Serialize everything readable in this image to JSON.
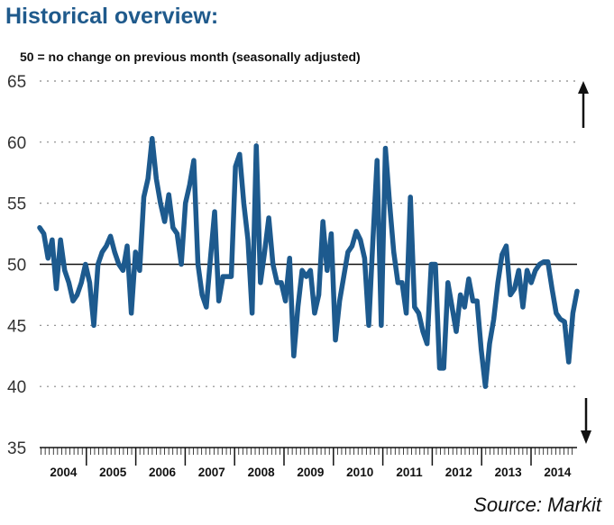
{
  "title": "Historical overview:",
  "subtitle": "50 = no change on previous month (seasonally adjusted)",
  "source": "Source: Markit",
  "chart_data": {
    "type": "line",
    "ylim": [
      35,
      65
    ],
    "yticks": [
      35,
      40,
      45,
      50,
      55,
      60,
      65
    ],
    "reference_line": 50,
    "grid": "dotted horizontal",
    "x_tick_labels": [
      "2004",
      "2005",
      "2006",
      "2007",
      "2008",
      "2009",
      "2010",
      "2011",
      "2012",
      "2013",
      "2014"
    ],
    "x_start": "2004-01",
    "frequency": "monthly",
    "line_color": "#1d5a8e",
    "annotations": [
      "up-arrow-icon",
      "down-arrow-icon"
    ],
    "values": [
      53,
      52.5,
      50.5,
      52,
      48,
      52,
      49.5,
      48.5,
      47,
      47.5,
      48.5,
      50,
      48.5,
      45,
      50,
      51,
      51.5,
      52.3,
      51,
      50,
      49.5,
      51.5,
      46,
      51,
      49.5,
      55.5,
      57,
      60.3,
      57,
      55,
      53.5,
      55.7,
      53,
      52.5,
      50,
      55,
      56.5,
      58.5,
      50,
      47.5,
      46.5,
      50.5,
      54.3,
      47,
      49,
      49,
      49,
      58,
      59,
      55,
      52,
      46,
      59.7,
      48.5,
      51,
      53.8,
      50,
      48.5,
      48.5,
      47,
      50.5,
      42.5,
      46.5,
      49.5,
      49,
      49.5,
      46,
      47.5,
      53.5,
      49.5,
      52.5,
      43.8,
      47,
      49,
      51,
      51.5,
      52.7,
      52,
      50.5,
      45,
      52,
      58.5,
      45,
      59.5,
      55,
      51,
      48.5,
      48.5,
      46,
      55.5,
      46.5,
      46,
      44.5,
      43.5,
      50,
      50,
      41.5,
      41.5,
      48.5,
      46.5,
      44.5,
      47.5,
      46.5,
      48.8,
      47,
      47,
      43,
      40,
      43.5,
      45.5,
      48.5,
      50.8,
      51.5,
      47.5,
      48,
      49.5,
      46.5,
      49.5,
      48.5,
      49.5,
      50,
      50.2,
      50.2,
      48,
      46,
      45.5,
      45.3,
      42,
      46,
      47.8
    ]
  }
}
